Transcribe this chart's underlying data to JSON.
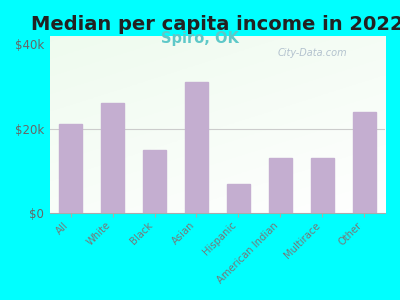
{
  "title": "Median per capita income in 2022",
  "subtitle": "Spiro, OK",
  "categories": [
    "All",
    "White",
    "Black",
    "Asian",
    "Hispanic",
    "American Indian",
    "Multirace",
    "Other"
  ],
  "values": [
    21000,
    26000,
    15000,
    31000,
    7000,
    13000,
    13000,
    24000
  ],
  "bar_color": "#c4aed0",
  "background_color": "#00ffff",
  "ylim": [
    0,
    42000
  ],
  "yticks": [
    0,
    20000,
    40000
  ],
  "ytick_labels": [
    "$0",
    "$20k",
    "$40k"
  ],
  "title_fontsize": 14,
  "subtitle_fontsize": 10.5,
  "subtitle_color": "#5ec8c8",
  "watermark": "City-Data.com",
  "watermark_color": "#a8b8c8",
  "gridline_color": "#cccccc",
  "tick_label_color": "#777777",
  "ytick_label_color": "#666666"
}
